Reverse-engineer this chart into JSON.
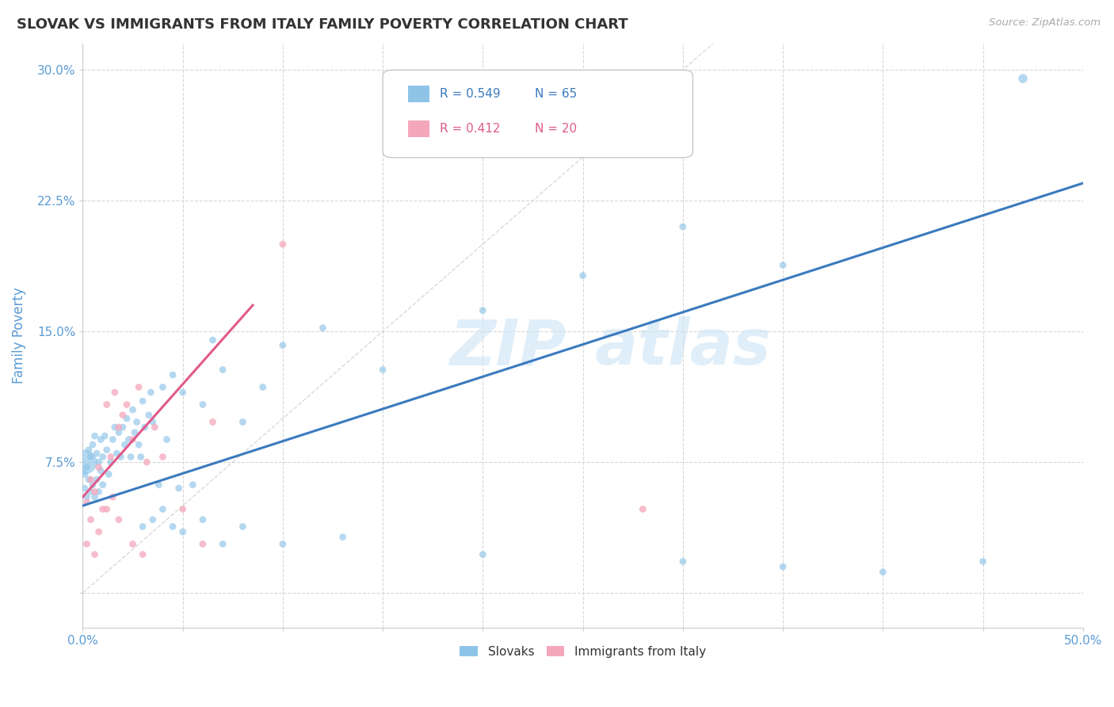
{
  "title": "SLOVAK VS IMMIGRANTS FROM ITALY FAMILY POVERTY CORRELATION CHART",
  "source": "Source: ZipAtlas.com",
  "ylabel": "Family Poverty",
  "xlim": [
    0.0,
    0.5
  ],
  "ylim": [
    -0.02,
    0.315
  ],
  "xticks": [
    0.0,
    0.05,
    0.1,
    0.15,
    0.2,
    0.25,
    0.3,
    0.35,
    0.4,
    0.45,
    0.5
  ],
  "yticks": [
    0.0,
    0.075,
    0.15,
    0.225,
    0.3
  ],
  "blue_color": "#8ec4e8",
  "pink_color": "#f4a7bb",
  "blue_line_color": "#3a7abf",
  "pink_line_color": "#e05a8a",
  "diagonal_color": "#d0d0d0",
  "grid_color": "#d8d8d8",
  "title_color": "#333333",
  "tick_label_color": "#5b9bd5",
  "ylabel_color": "#5b9bd5",
  "legend_r1": "R = 0.549",
  "legend_n1": "N = 65",
  "legend_r2": "R = 0.412",
  "legend_n2": "N = 20",
  "blue_line_x0": 0.0,
  "blue_line_y0": 0.05,
  "blue_line_x1": 0.5,
  "blue_line_y1": 0.235,
  "pink_line_x0": 0.0,
  "pink_line_y0": 0.055,
  "pink_line_x1": 0.085,
  "pink_line_y1": 0.165,
  "slovaks_x": [
    0.001,
    0.001,
    0.001,
    0.002,
    0.002,
    0.003,
    0.003,
    0.004,
    0.004,
    0.005,
    0.005,
    0.006,
    0.006,
    0.007,
    0.007,
    0.008,
    0.008,
    0.009,
    0.009,
    0.01,
    0.01,
    0.011,
    0.012,
    0.013,
    0.014,
    0.015,
    0.016,
    0.017,
    0.018,
    0.019,
    0.02,
    0.021,
    0.022,
    0.023,
    0.024,
    0.025,
    0.026,
    0.027,
    0.028,
    0.029,
    0.03,
    0.031,
    0.033,
    0.034,
    0.035,
    0.038,
    0.04,
    0.042,
    0.045,
    0.048,
    0.05,
    0.055,
    0.06,
    0.065,
    0.07,
    0.08,
    0.09,
    0.1,
    0.12,
    0.15,
    0.2,
    0.25,
    0.3,
    0.35,
    0.47
  ],
  "slovaks_y": [
    0.075,
    0.068,
    0.06,
    0.072,
    0.055,
    0.082,
    0.065,
    0.078,
    0.058,
    0.085,
    0.062,
    0.09,
    0.055,
    0.08,
    0.065,
    0.075,
    0.058,
    0.088,
    0.07,
    0.078,
    0.062,
    0.09,
    0.082,
    0.068,
    0.075,
    0.088,
    0.095,
    0.08,
    0.092,
    0.078,
    0.095,
    0.085,
    0.1,
    0.088,
    0.078,
    0.105,
    0.092,
    0.098,
    0.085,
    0.078,
    0.11,
    0.095,
    0.102,
    0.115,
    0.098,
    0.062,
    0.118,
    0.088,
    0.125,
    0.06,
    0.115,
    0.062,
    0.108,
    0.145,
    0.128,
    0.098,
    0.118,
    0.142,
    0.152,
    0.128,
    0.162,
    0.182,
    0.21,
    0.188,
    0.295
  ],
  "slovaks_sizes": [
    500,
    40,
    40,
    40,
    40,
    40,
    40,
    40,
    40,
    40,
    40,
    40,
    40,
    40,
    40,
    40,
    40,
    40,
    40,
    40,
    40,
    40,
    40,
    40,
    40,
    40,
    40,
    40,
    40,
    40,
    40,
    40,
    40,
    40,
    40,
    40,
    40,
    40,
    40,
    40,
    40,
    40,
    40,
    40,
    40,
    40,
    40,
    40,
    40,
    40,
    40,
    40,
    40,
    40,
    40,
    40,
    40,
    40,
    40,
    40,
    40,
    40,
    40,
    40,
    70
  ],
  "italy_x": [
    0.002,
    0.004,
    0.006,
    0.008,
    0.01,
    0.012,
    0.014,
    0.016,
    0.018,
    0.02,
    0.022,
    0.025,
    0.028,
    0.032,
    0.036,
    0.04,
    0.05,
    0.065,
    0.1,
    0.28
  ],
  "italy_y": [
    0.052,
    0.065,
    0.058,
    0.072,
    0.048,
    0.108,
    0.078,
    0.115,
    0.095,
    0.102,
    0.108,
    0.088,
    0.118,
    0.075,
    0.095,
    0.078,
    0.048,
    0.098,
    0.2,
    0.048
  ],
  "italy_sizes": [
    40,
    40,
    40,
    40,
    40,
    40,
    40,
    40,
    40,
    40,
    40,
    40,
    40,
    40,
    40,
    40,
    40,
    40,
    40,
    40
  ],
  "extra_blue_low_x": [
    0.03,
    0.035,
    0.04,
    0.045,
    0.05,
    0.06,
    0.07,
    0.08,
    0.1,
    0.13,
    0.2,
    0.3,
    0.35,
    0.4,
    0.45
  ],
  "extra_blue_low_y": [
    0.038,
    0.042,
    0.048,
    0.038,
    0.035,
    0.042,
    0.028,
    0.038,
    0.028,
    0.032,
    0.022,
    0.018,
    0.015,
    0.012,
    0.018
  ],
  "extra_pink_low_x": [
    0.002,
    0.004,
    0.006,
    0.008,
    0.012,
    0.015,
    0.018,
    0.025,
    0.03,
    0.06
  ],
  "extra_pink_low_y": [
    0.028,
    0.042,
    0.022,
    0.035,
    0.048,
    0.055,
    0.042,
    0.028,
    0.022,
    0.028
  ]
}
